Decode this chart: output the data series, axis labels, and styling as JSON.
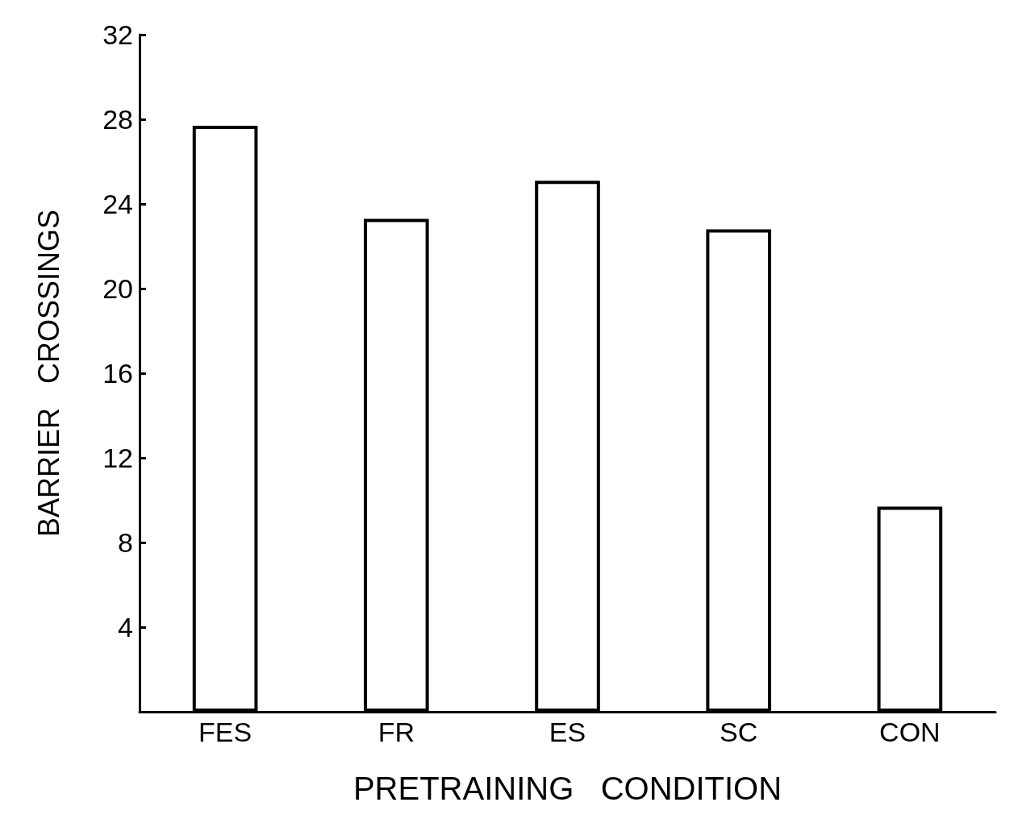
{
  "chart_data": {
    "type": "bar",
    "categories": [
      "FES",
      "FR",
      "ES",
      "SC",
      "CON"
    ],
    "values": [
      27.7,
      23.3,
      25.1,
      22.8,
      9.7
    ],
    "color": "#000000",
    "xlabel": "PRETRAINING   CONDITION",
    "ylabel": "BARRIER   CROSSINGS",
    "ylim": [
      0,
      32
    ],
    "yticks": [
      4,
      8,
      12,
      16,
      20,
      24,
      28,
      32
    ],
    "grid": false
  }
}
